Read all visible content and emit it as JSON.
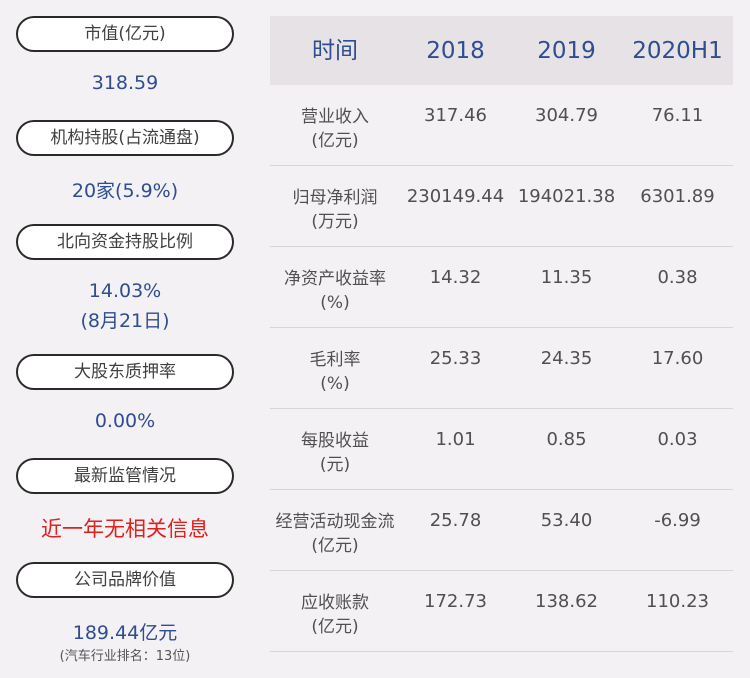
{
  "left": {
    "items": [
      {
        "label": "市值(亿元)",
        "value": "318.59"
      },
      {
        "label": "机构持股(占流通盘)",
        "value": "20家(5.9%)"
      },
      {
        "label": "北向资金持股比例",
        "value_line1": "14.03%",
        "value_line2": "(8月21日)"
      },
      {
        "label": "大股东质押率",
        "value": "0.00%"
      },
      {
        "label": "最新监管情况",
        "value": "近一年无相关信息"
      },
      {
        "label": "公司品牌价值",
        "value": "189.44亿元",
        "note": "(汽车行业排名：13位)"
      }
    ],
    "colors": {
      "value": "#2f4d8f",
      "alert": "#e0201c"
    }
  },
  "table": {
    "headers": [
      "时间",
      "2018",
      "2019",
      "2020H1"
    ],
    "rows": [
      {
        "name1": "营业收入",
        "name2": "(亿元)",
        "v": [
          "317.46",
          "304.79",
          "76.11"
        ]
      },
      {
        "name1": "归母净利润",
        "name2": "(万元)",
        "v": [
          "230149.44",
          "194021.38",
          "6301.89"
        ]
      },
      {
        "name1": "净资产收益率",
        "name2": "(%)",
        "v": [
          "14.32",
          "11.35",
          "0.38"
        ]
      },
      {
        "name1": "毛利率",
        "name2": "(%)",
        "v": [
          "25.33",
          "24.35",
          "17.60"
        ]
      },
      {
        "name1": "每股收益",
        "name2": "(元)",
        "v": [
          "1.01",
          "0.85",
          "0.03"
        ]
      },
      {
        "name1": "经营活动现金流",
        "name2": "(亿元)",
        "v": [
          "25.78",
          "53.40",
          "-6.99"
        ]
      },
      {
        "name1": "应收账款",
        "name2": "(亿元)",
        "v": [
          "172.73",
          "138.62",
          "110.23"
        ]
      }
    ]
  }
}
